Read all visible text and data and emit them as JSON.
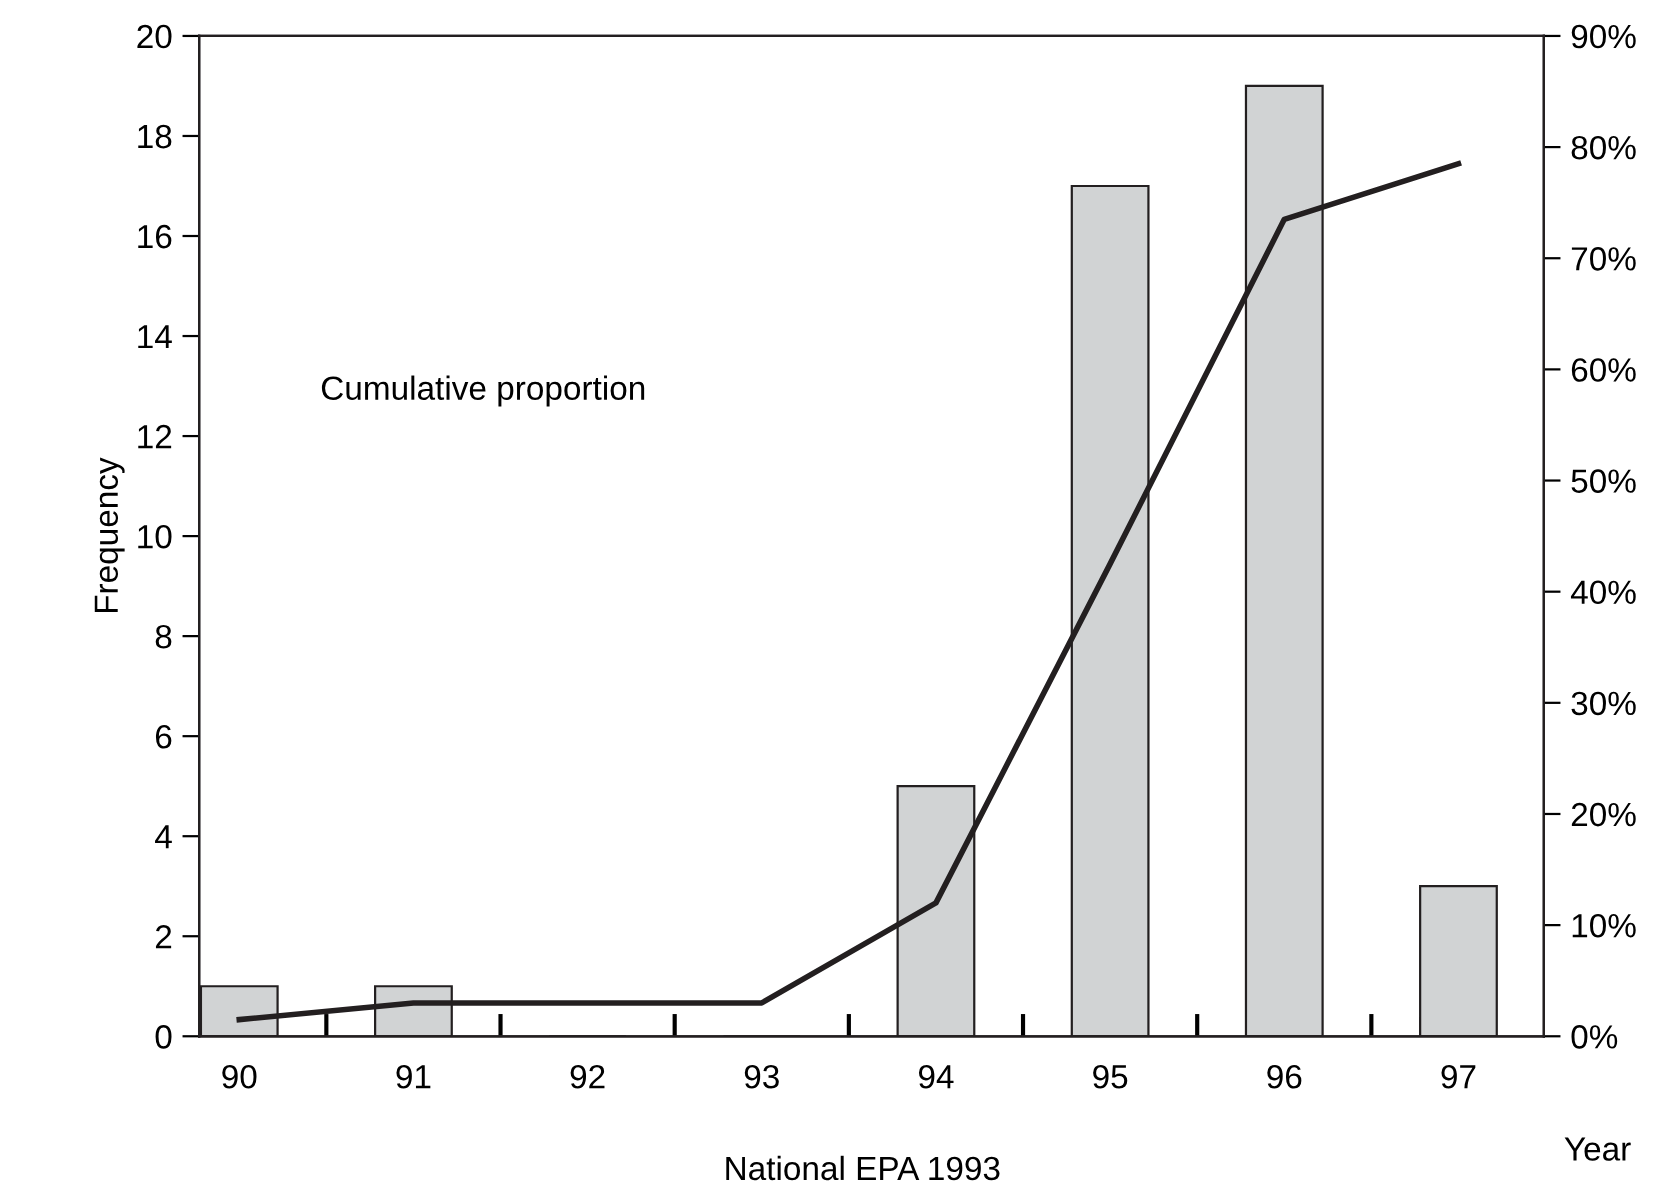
{
  "chart_data": {
    "type": "bar",
    "categories": [
      "90",
      "91",
      "92",
      "93",
      "94",
      "95",
      "96",
      "97"
    ],
    "series": [
      {
        "color": "#d1d3d4",
        "values": [
          1,
          1,
          0,
          0,
          5,
          17,
          19,
          3
        ]
      },
      {
        "type": "line",
        "axis": "y2",
        "color": "#231f20",
        "values": [
          1.5,
          3,
          3,
          3,
          12,
          42.5,
          73.5,
          78.5
        ]
      }
    ],
    "xlabel": "Year",
    "ylabel": "Frequency",
    "ylim": [
      0,
      20
    ],
    "yticks": [
      0,
      2,
      4,
      6,
      8,
      10,
      12,
      14,
      16,
      18,
      20
    ],
    "y2lim": [
      0,
      90
    ],
    "y2ticks": [
      {
        "value": 0,
        "label": "0%"
      },
      {
        "value": 10,
        "label": "10%"
      },
      {
        "value": 20,
        "label": "20%"
      },
      {
        "value": 30,
        "label": "30%"
      },
      {
        "value": 40,
        "label": "40%"
      },
      {
        "value": 50,
        "label": "50%"
      },
      {
        "value": 60,
        "label": "60%"
      },
      {
        "value": 70,
        "label": "70%"
      },
      {
        "value": 80,
        "label": "80%"
      },
      {
        "value": 90,
        "label": "90%"
      }
    ],
    "annotations": [
      "Cumulative proportion",
      "National EPA 1993"
    ],
    "grid": false,
    "legend": false,
    "marker": "none",
    "line_style": "solid"
  }
}
